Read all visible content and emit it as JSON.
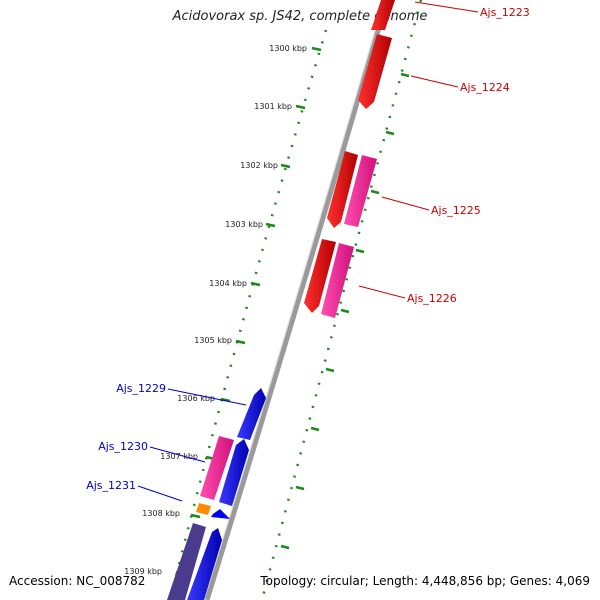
{
  "title": "Acidovorax sp. JS42, complete genome",
  "footer": {
    "accession": "Accession: NC_008782",
    "topology": "Topology: circular; Length: 4,448,856 bp; Genes: 4,069"
  },
  "ticks": [
    {
      "label": "1300 kbp"
    },
    {
      "label": "1301 kbp"
    },
    {
      "label": "1302 kbp"
    },
    {
      "label": "1303 kbp"
    },
    {
      "label": "1304 kbp"
    },
    {
      "label": "1305 kbp"
    },
    {
      "label": "1306 kbp"
    },
    {
      "label": "1307 kbp"
    },
    {
      "label": "1308 kbp"
    },
    {
      "label": "1309 kbp"
    }
  ],
  "genes": [
    {
      "label": "Ajs_1223",
      "color": "#cc0000"
    },
    {
      "label": "Ajs_1224",
      "color": "#cc0000"
    },
    {
      "label": "Ajs_1225",
      "color": "#cc0000"
    },
    {
      "label": "Ajs_1226",
      "color": "#cc0000"
    },
    {
      "label": "Ajs_1229",
      "color": "#0000cc"
    },
    {
      "label": "Ajs_1230",
      "color": "#0000cc"
    },
    {
      "label": "Ajs_1231",
      "color": "#0000cc"
    }
  ],
  "colors": {
    "forward_cds": "#ff0000",
    "reverse_cds": "#0000ff",
    "rna": "#ff2090",
    "other": "#ff8c00",
    "backbone": "#808080",
    "tick_marks": "#1a8a1a",
    "dark_feature": "#4b3b8c"
  }
}
